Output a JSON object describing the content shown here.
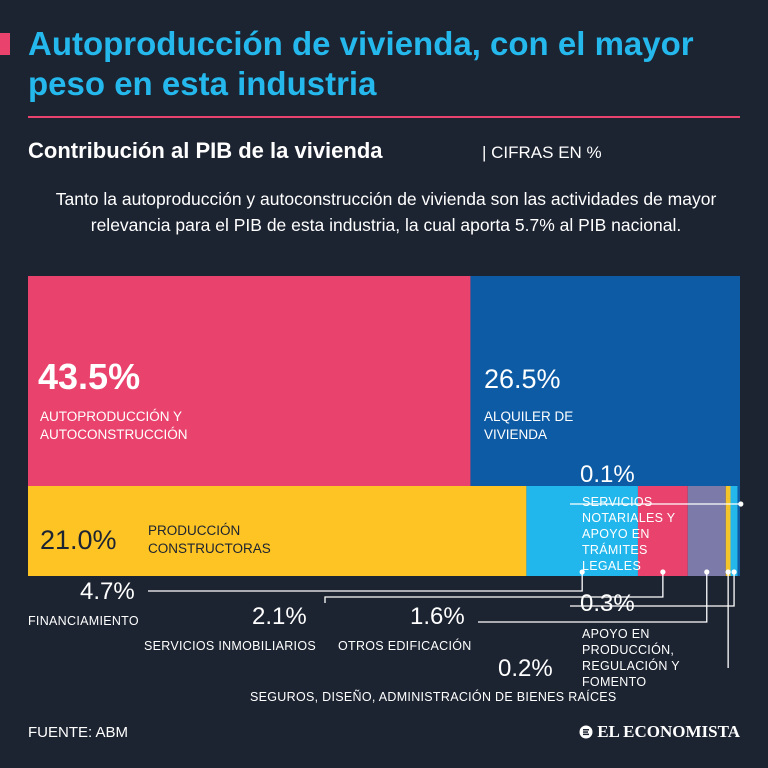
{
  "header": {
    "title": "Autoproducción de vivienda, con el mayor peso en esta industria",
    "subtitle": "Contribución al PIB de la vivienda",
    "units": "| CIFRAS EN %",
    "description": "Tanto la autoproducción y autoconstrucción de vivienda son las actividades de mayor relevancia para el PIB de esta industria, la cual aporta 5.7% al PIB nacional."
  },
  "colors": {
    "background": "#1c2331",
    "title": "#24b8ec",
    "accent": "#e9436d",
    "autoproduccion": "#e9436d",
    "alquiler": "#0d5ba4",
    "produccion": "#fdc424",
    "financiamiento": "#22b7ec",
    "servicios_inmobiliarios": "#e9436d",
    "otros_edificacion": "#7c7aa8",
    "seguros": "#f4c52a",
    "apoyo_produccion": "#23b7ec",
    "servicios_notariales": "#0d5ba4"
  },
  "chart_data": {
    "type": "treemap",
    "title": "Contribución al PIB de la vivienda",
    "unit": "%",
    "items": [
      {
        "key": "autoproduccion",
        "value": 43.5,
        "value_label": "43.5%",
        "label": "AUTOPRODUCCIÓN Y AUTOCONSTRUCCIÓN"
      },
      {
        "key": "alquiler",
        "value": 26.5,
        "value_label": "26.5%",
        "label": "ALQUILER DE VIVIENDA"
      },
      {
        "key": "produccion",
        "value": 21.0,
        "value_label": "21.0%",
        "label": "PRODUCCIÓN CONSTRUCTORAS"
      },
      {
        "key": "financiamiento",
        "value": 4.7,
        "value_label": "4.7%",
        "label": "FINANCIAMIENTO"
      },
      {
        "key": "servicios_inmobiliarios",
        "value": 2.1,
        "value_label": "2.1%",
        "label": "SERVICIOS INMOBILIARIOS"
      },
      {
        "key": "otros_edificacion",
        "value": 1.6,
        "value_label": "1.6%",
        "label": "OTROS EDIFICACIÓN"
      },
      {
        "key": "seguros",
        "value": 0.2,
        "value_label": "0.2%",
        "label": "SEGUROS, DISEÑO, ADMINISTRACIÓN DE BIENES RAÍCES"
      },
      {
        "key": "apoyo_produccion",
        "value": 0.3,
        "value_label": "0.3%",
        "label": "APOYO EN PRODUCCIÓN, REGULACIÓN Y FOMENTO"
      },
      {
        "key": "servicios_notariales",
        "value": 0.1,
        "value_label": "0.1%",
        "label": "SERVICIOS NOTARIALES Y APOYO EN TRÁMITES LEGALES"
      }
    ]
  },
  "footer": {
    "source": "FUENTE: ABM",
    "brand": "EL ECONOMISTA"
  }
}
